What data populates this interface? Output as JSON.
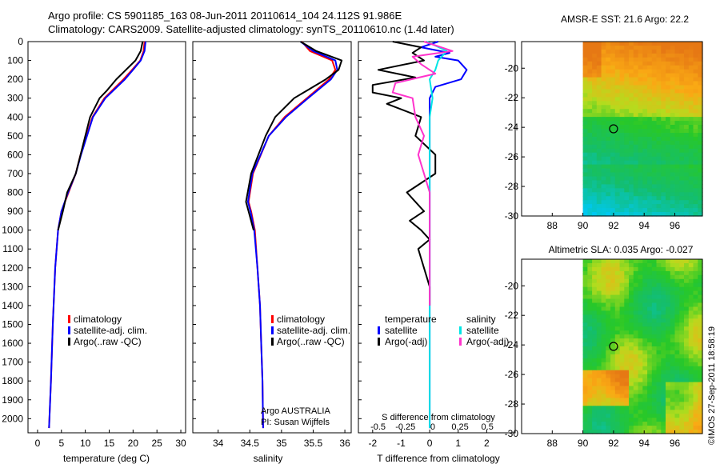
{
  "header": {
    "line1": "Argo profile: CS 5901185_163 08-Jun-2011 20110614_104 24.112S 91.986E",
    "line2": "Climatology: CARS2009. Satellite-adjusted climatology: synTS_20110610.nc (1.4d later)"
  },
  "side_label": "©IMOS 27-Sep-2011 18:58:19",
  "colors": {
    "red": "#ff0000",
    "blue": "#0000ff",
    "black": "#000000",
    "cyan": "#00e5e5",
    "magenta": "#ff33cc"
  },
  "chart_data": [
    {
      "type": "line",
      "id": "temperature",
      "xlabel": "temperature (deg C)",
      "xlim": [
        -2,
        31
      ],
      "ylim": [
        0,
        2075
      ],
      "xticks": [
        0,
        5,
        10,
        15,
        20,
        25,
        30
      ],
      "yticks": [
        0,
        100,
        200,
        300,
        400,
        500,
        600,
        700,
        800,
        900,
        1000,
        1100,
        1200,
        1300,
        1400,
        1500,
        1600,
        1700,
        1800,
        1900,
        2000
      ],
      "legend": [
        "climatology",
        "satellite-adj. clim.",
        "Argo(..raw -QC)"
      ],
      "series": [
        {
          "name": "climatology",
          "color": "red",
          "depth": [
            0,
            50,
            100,
            150,
            200,
            300,
            400,
            600,
            700,
            800,
            900,
            1000,
            1200,
            1500,
            1800,
            2050
          ],
          "values": [
            22.4,
            22.2,
            21.5,
            19.8,
            18,
            14,
            11.5,
            9,
            8,
            6.5,
            5,
            4.3,
            3.7,
            3.2,
            2.8,
            2.4
          ]
        },
        {
          "name": "satellite-adj. clim.",
          "color": "blue",
          "depth": [
            0,
            50,
            100,
            150,
            200,
            300,
            400,
            600,
            700,
            800,
            900,
            1000,
            1200,
            1500,
            1800,
            2050
          ],
          "values": [
            22.6,
            22.4,
            21.6,
            20,
            18.3,
            14.2,
            11.6,
            9.1,
            8,
            6.4,
            5,
            4.3,
            3.7,
            3.2,
            2.8,
            2.4
          ]
        },
        {
          "name": "Argo(..raw -QC)",
          "color": "black",
          "depth": [
            0,
            50,
            100,
            150,
            200,
            260,
            300,
            400,
            600,
            700,
            800,
            900,
            1000
          ],
          "values": [
            22,
            21.6,
            20.5,
            18.5,
            16.5,
            14.5,
            13,
            11,
            9,
            8,
            6.2,
            5.3,
            4.3
          ]
        }
      ]
    },
    {
      "type": "line",
      "id": "salinity",
      "xlabel": "salinity",
      "xlim": [
        33.6,
        36.1
      ],
      "ylim": [
        0,
        2075
      ],
      "xticks": [
        34,
        34.5,
        35,
        35.5,
        36
      ],
      "xticklabels": [
        "34",
        "34.5",
        "35",
        "35.5",
        "36"
      ],
      "legend": [
        "climatology",
        "satellite-adj. clim.",
        "Argo(..raw -QC)"
      ],
      "annotation": [
        "Argo AUSTRALIA",
        "PI: Susan Wijffels"
      ],
      "series": [
        {
          "name": "climatology",
          "color": "red",
          "depth": [
            0,
            50,
            100,
            150,
            200,
            300,
            400,
            500,
            700,
            850,
            900,
            1000,
            1200,
            1400,
            1600,
            1800,
            2050
          ],
          "values": [
            35.32,
            35.45,
            35.8,
            35.85,
            35.75,
            35.4,
            35.05,
            34.8,
            34.55,
            34.48,
            34.52,
            34.58,
            34.62,
            34.66,
            34.68,
            34.7,
            34.71
          ]
        },
        {
          "name": "satellite-adj. clim.",
          "color": "blue",
          "depth": [
            0,
            50,
            100,
            150,
            200,
            300,
            400,
            500,
            700,
            850,
            900,
            1000,
            1200,
            1400,
            1600,
            1800,
            2050
          ],
          "values": [
            35.3,
            35.5,
            35.85,
            35.88,
            35.78,
            35.42,
            35.07,
            34.8,
            34.54,
            34.47,
            34.51,
            34.57,
            34.62,
            34.66,
            34.68,
            34.7,
            34.71
          ]
        },
        {
          "name": "Argo(..raw -QC)",
          "color": "black",
          "depth": [
            0,
            50,
            100,
            150,
            200,
            300,
            400,
            500,
            700,
            850,
            900,
            1000
          ],
          "values": [
            35.3,
            35.55,
            35.95,
            35.9,
            35.7,
            35.2,
            34.9,
            34.75,
            34.52,
            34.44,
            34.48,
            34.56
          ]
        }
      ]
    },
    {
      "type": "line",
      "id": "difference",
      "xlabel": "T difference from climatology",
      "top_label": "S difference from climatology",
      "xlim": [
        -2.5,
        3.0
      ],
      "ylim": [
        0,
        2075
      ],
      "xticks": [
        -2,
        -1,
        0,
        1,
        2
      ],
      "top_ticks": [
        -0.5,
        -0.25,
        0,
        0.25,
        0.5
      ],
      "top_ticklabels": [
        "-0.5",
        "-0.25",
        "0",
        "0.25",
        "0.5"
      ],
      "legend_temperature": {
        "title": "temperature",
        "items": [
          "satellite",
          "Argo(-adj)"
        ]
      },
      "legend_salinity": {
        "title": "salinity",
        "items": [
          "satellite",
          "Argo(-adj)"
        ]
      },
      "series": [
        {
          "name": "temperature satellite",
          "color": "blue",
          "depth": [
            0,
            30,
            60,
            80,
            100,
            150,
            200,
            240,
            300,
            400,
            600,
            1000,
            1400,
            2050
          ],
          "values": [
            0.3,
            -0.3,
            0.7,
            0.2,
            1.0,
            1.3,
            1.1,
            0.2,
            0,
            0,
            0,
            0,
            0,
            0
          ]
        },
        {
          "name": "temperature Argo(-adj)",
          "color": "black",
          "depth": [
            0,
            30,
            60,
            100,
            150,
            190,
            230,
            270,
            300,
            330,
            400,
            500,
            600,
            700,
            800,
            900,
            950,
            1000,
            1050,
            1100,
            1300,
            1400
          ],
          "values": [
            -1.3,
            -0.3,
            -0.6,
            -0.2,
            -1.8,
            -0.5,
            -2.0,
            -2.0,
            -1.0,
            -1.5,
            -0.3,
            -0.5,
            0.2,
            0.2,
            -0.8,
            -0.2,
            -0.7,
            -0.3,
            0,
            -0.4,
            0,
            0
          ]
        },
        {
          "name": "salinity satellite",
          "color": "cyan",
          "depth": [
            0,
            50,
            100,
            150,
            200,
            300,
            400,
            2050
          ],
          "values": [
            -0.1,
            0.6,
            0.3,
            0.2,
            0,
            0.1,
            0,
            0
          ]
        },
        {
          "name": "salinity Argo(-adj)",
          "color": "magenta",
          "depth": [
            0,
            50,
            80,
            120,
            170,
            220,
            270,
            300,
            400,
            500,
            600,
            700,
            800,
            900,
            1000,
            1200,
            1400
          ],
          "values": [
            -0.2,
            0.8,
            -0.6,
            -0.3,
            0.2,
            -1.2,
            -1.3,
            -0.6,
            -0.5,
            -0.2,
            -0.4,
            -0.2,
            0,
            0,
            0,
            0,
            0
          ]
        }
      ]
    },
    {
      "type": "heatmap",
      "id": "sst_map",
      "title": "AMSR-E SST: 21.6 Argo: 22.2",
      "xlim": [
        86,
        97.8
      ],
      "ylim": [
        -30,
        -18.2
      ],
      "xticks": [
        88,
        90,
        92,
        94,
        96
      ],
      "yticks": [
        -20,
        -22,
        -24,
        -26,
        -28,
        -30
      ],
      "marker": {
        "lon": 92,
        "lat": -24.1
      }
    },
    {
      "type": "heatmap",
      "id": "sla_map",
      "title": "Altimetric SLA: 0.035 Argo: -0.027",
      "xlim": [
        86,
        97.8
      ],
      "ylim": [
        -30,
        -18.2
      ],
      "xticks": [
        88,
        90,
        92,
        94,
        96
      ],
      "yticks": [
        -20,
        -22,
        -24,
        -26,
        -28,
        -30
      ],
      "marker": {
        "lon": 92,
        "lat": -24.1
      }
    }
  ]
}
